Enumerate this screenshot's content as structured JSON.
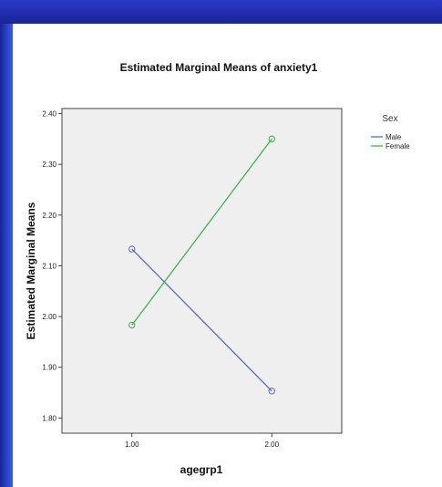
{
  "chart_data": {
    "type": "line",
    "title": "Estimated Marginal Means of anxiety1",
    "xlabel": "agegrp1",
    "ylabel": "Estimated Marginal Means",
    "x": [
      1.0,
      2.0
    ],
    "x_tick_labels": [
      "1.00",
      "2.00"
    ],
    "xlim": [
      0.5,
      2.5
    ],
    "ylim": [
      1.77,
      2.41
    ],
    "y_ticks": [
      1.8,
      1.9,
      2.0,
      2.1,
      2.2,
      2.3,
      2.4
    ],
    "y_tick_labels": [
      "1.80",
      "1.90",
      "2.00",
      "2.10",
      "2.20",
      "2.30",
      "2.40"
    ],
    "grid": false,
    "legend_title": "Sex",
    "legend_position": "top-right outside",
    "series": [
      {
        "name": "Male",
        "values": [
          2.133,
          1.853
        ],
        "color": "#5a6cb0"
      },
      {
        "name": "Female",
        "values": [
          1.983,
          2.35
        ],
        "color": "#3db34a"
      }
    ],
    "plot_background": "#efefef"
  }
}
